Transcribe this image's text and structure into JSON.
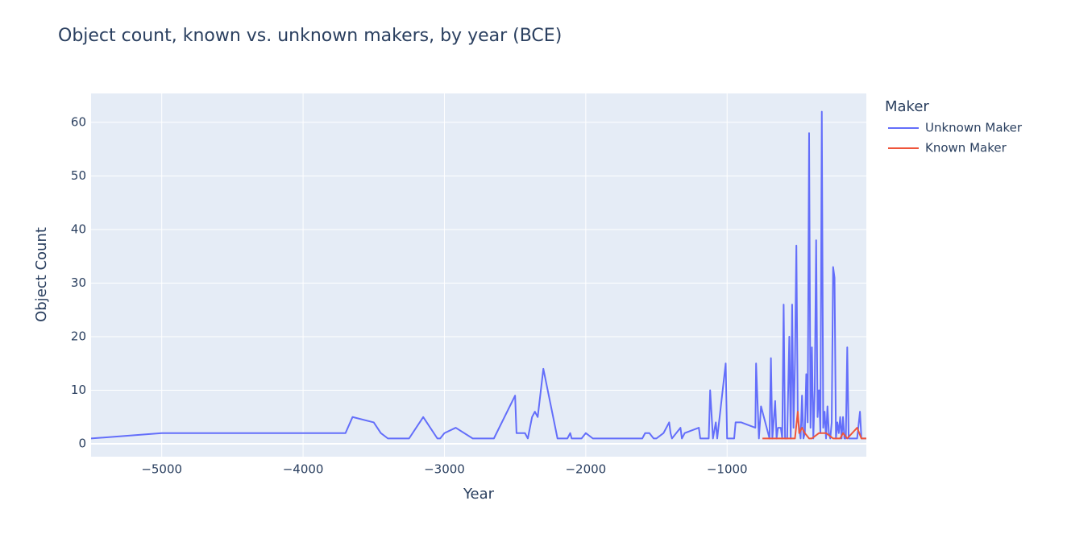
{
  "chart_data": {
    "type": "line",
    "title": "Object count, known vs. unknown makers, by year (BCE)",
    "x_label": "Year",
    "y_label": "Object Count",
    "legend_title": "Maker",
    "xlim": [
      -5500,
      -15
    ],
    "ylim": [
      -2.4,
      65.4
    ],
    "xticks": [
      {
        "value": -5000,
        "label": "−5000"
      },
      {
        "value": -4000,
        "label": "−4000"
      },
      {
        "value": -3000,
        "label": "−3000"
      },
      {
        "value": -2000,
        "label": "−2000"
      },
      {
        "value": -1000,
        "label": "−1000"
      }
    ],
    "yticks": [
      0,
      10,
      20,
      30,
      40,
      50,
      60
    ],
    "grid": true,
    "legend": "outside-right",
    "series": [
      {
        "name": "Unknown Maker",
        "color": "#636efa",
        "x": [
          -5500,
          -5000,
          -3700,
          -3650,
          -3500,
          -3450,
          -3400,
          -3250,
          -3150,
          -3050,
          -3030,
          -3000,
          -2920,
          -2800,
          -2650,
          -2500,
          -2490,
          -2430,
          -2410,
          -2380,
          -2360,
          -2340,
          -2300,
          -2200,
          -2130,
          -2110,
          -2100,
          -2030,
          -2000,
          -1950,
          -1600,
          -1580,
          -1550,
          -1520,
          -1500,
          -1450,
          -1410,
          -1400,
          -1390,
          -1330,
          -1320,
          -1300,
          -1200,
          -1190,
          -1130,
          -1120,
          -1100,
          -1080,
          -1070,
          -1010,
          -1000,
          -950,
          -940,
          -900,
          -800,
          -795,
          -775,
          -760,
          -700,
          -690,
          -680,
          -660,
          -650,
          -640,
          -620,
          -610,
          -600,
          -590,
          -575,
          -560,
          -550,
          -540,
          -530,
          -520,
          -510,
          -500,
          -490,
          -480,
          -470,
          -460,
          -450,
          -440,
          -430,
          -420,
          -410,
          -400,
          -390,
          -380,
          -370,
          -360,
          -350,
          -340,
          -330,
          -320,
          -310,
          -300,
          -290,
          -280,
          -270,
          -260,
          -250,
          -240,
          -230,
          -220,
          -210,
          -200,
          -190,
          -180,
          -170,
          -160,
          -150,
          -140,
          -80,
          -60,
          -50,
          -15
        ],
        "values": [
          1,
          2,
          2,
          5,
          4,
          2,
          1,
          1,
          5,
          1,
          1,
          2,
          3,
          1,
          1,
          9,
          2,
          2,
          1,
          5,
          6,
          5,
          14,
          1,
          1,
          2,
          1,
          1,
          2,
          1,
          1,
          2,
          2,
          1,
          1,
          2,
          4,
          2,
          1,
          3,
          1,
          2,
          3,
          1,
          1,
          10,
          1,
          4,
          1,
          15,
          1,
          1,
          4,
          4,
          3,
          15,
          1,
          7,
          1,
          16,
          1,
          8,
          1,
          3,
          3,
          1,
          26,
          1,
          1,
          20,
          1,
          26,
          3,
          15,
          37,
          5,
          3,
          1,
          9,
          1,
          2,
          13,
          4,
          58,
          3,
          18,
          1,
          10,
          38,
          5,
          10,
          2,
          62,
          3,
          6,
          1,
          7,
          2,
          1,
          4,
          33,
          31,
          1,
          4,
          2,
          5,
          1,
          5,
          1,
          1,
          18,
          1,
          1,
          6,
          1,
          1
        ]
      },
      {
        "name": "Known Maker",
        "color": "#EF553B",
        "x": [
          -750,
          -600,
          -520,
          -500,
          -490,
          -470,
          -450,
          -420,
          -400,
          -350,
          -300,
          -250,
          -200,
          -180,
          -150,
          -80,
          -50,
          -15
        ],
        "values": [
          1,
          1,
          1,
          6,
          2,
          3,
          2,
          1,
          1,
          2,
          2,
          1,
          1,
          2,
          1,
          3,
          1,
          1
        ]
      }
    ]
  }
}
